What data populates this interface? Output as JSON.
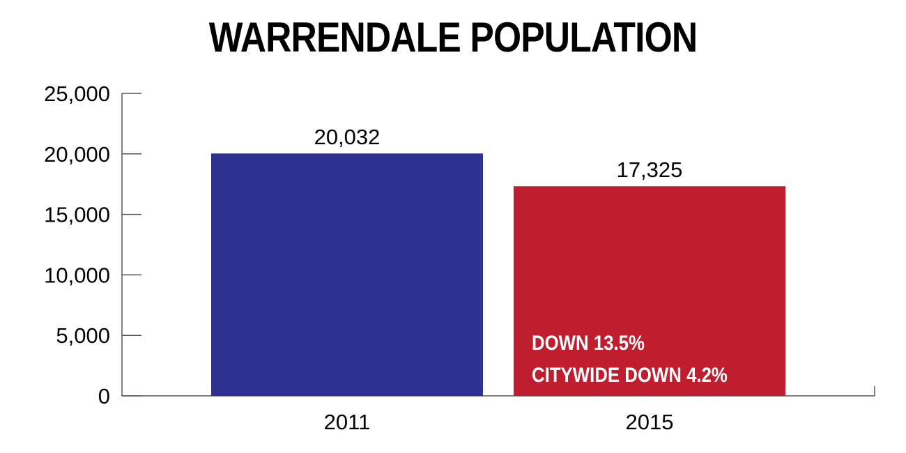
{
  "chart_data": {
    "type": "bar",
    "title": "WARRENDALE POPULATION",
    "categories": [
      "2011",
      "2015"
    ],
    "values": [
      20032,
      17325
    ],
    "data_labels": [
      "20,032",
      "17,325"
    ],
    "bar_colors": [
      "#2e3192",
      "#be1e2d"
    ],
    "ylim": [
      0,
      25000
    ],
    "yticks": [
      0,
      5000,
      10000,
      15000,
      20000,
      25000
    ],
    "ytick_labels": [
      "0",
      "5,000",
      "10,000",
      "15,000",
      "20,000",
      "25,000"
    ],
    "xlabel": "",
    "ylabel": "",
    "grid": false,
    "annotations": [
      "DOWN 13.5%",
      "CITYWIDE DOWN 4.2%"
    ]
  }
}
